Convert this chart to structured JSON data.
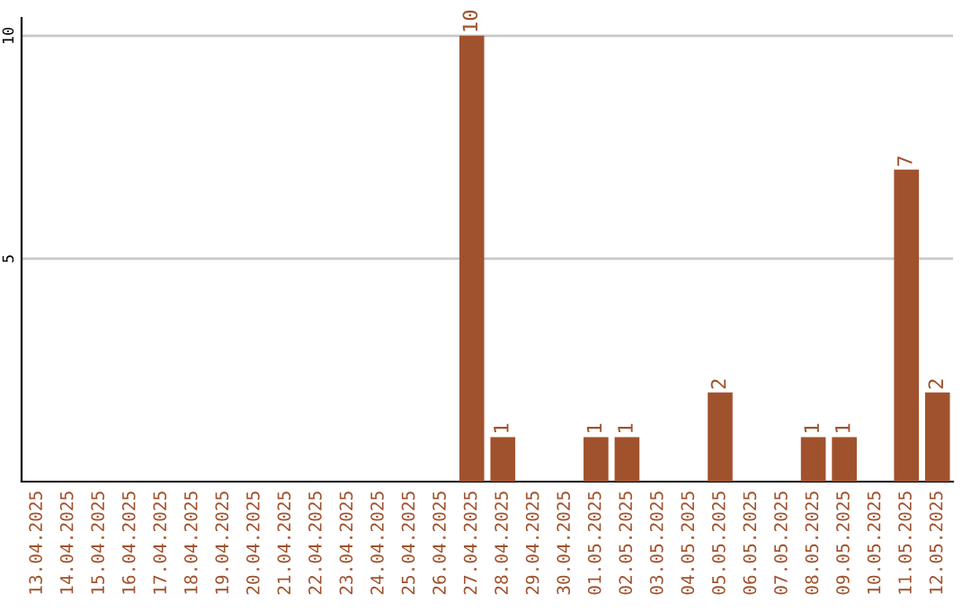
{
  "chart_data": {
    "type": "bar",
    "categories": [
      "13.04.2025",
      "14.04.2025",
      "15.04.2025",
      "16.04.2025",
      "17.04.2025",
      "18.04.2025",
      "19.04.2025",
      "20.04.2025",
      "21.04.2025",
      "22.04.2025",
      "23.04.2025",
      "24.04.2025",
      "25.04.2025",
      "26.04.2025",
      "27.04.2025",
      "28.04.2025",
      "29.04.2025",
      "30.04.2025",
      "01.05.2025",
      "02.05.2025",
      "03.05.2025",
      "04.05.2025",
      "05.05.2025",
      "06.05.2025",
      "07.05.2025",
      "08.05.2025",
      "09.05.2025",
      "10.05.2025",
      "11.05.2025",
      "12.05.2025"
    ],
    "values": [
      0,
      0,
      0,
      0,
      0,
      0,
      0,
      0,
      0,
      0,
      0,
      0,
      0,
      0,
      10,
      1,
      0,
      0,
      1,
      1,
      0,
      0,
      2,
      0,
      0,
      1,
      1,
      0,
      7,
      2
    ],
    "value_labels": [
      null,
      null,
      null,
      null,
      null,
      null,
      null,
      null,
      null,
      null,
      null,
      null,
      null,
      null,
      "10",
      "1",
      null,
      null,
      "1",
      "1",
      null,
      null,
      "2",
      null,
      null,
      "1",
      "1",
      null,
      "7",
      "2"
    ],
    "color": "#a0522d",
    "ylim": [
      0,
      10.4
    ],
    "yticks": [
      5,
      10
    ],
    "grid": "y",
    "legend": false
  }
}
